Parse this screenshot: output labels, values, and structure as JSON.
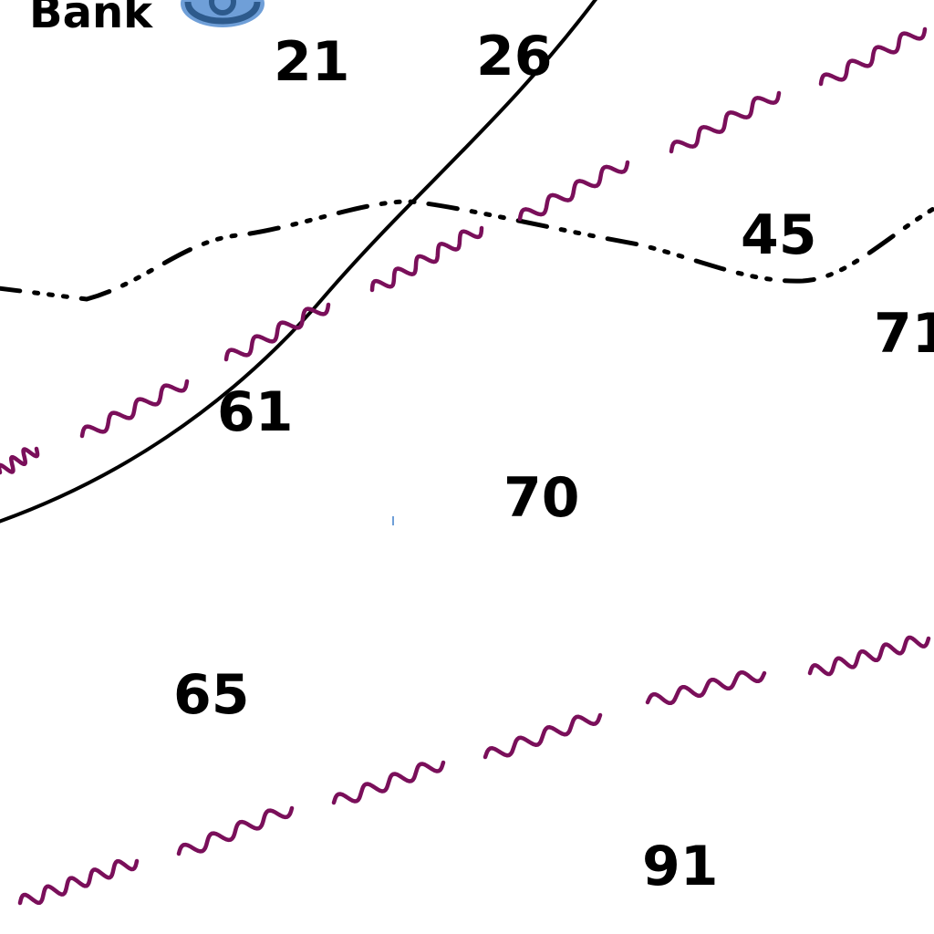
{
  "map": {
    "place_label": "Bank",
    "soundings": [
      "21",
      "26",
      "45",
      "71",
      "61",
      "70",
      "65",
      "91"
    ]
  },
  "colors": {
    "background": "#ffffff",
    "ink": "#000000",
    "submarine_cable": "#7a0f5a",
    "buoy_fill": "#6f9fd8",
    "buoy_ring": "#2d5a8c"
  },
  "symbols": {
    "buoy": "buoy-icon",
    "cable": "submarine-cable-symbol"
  }
}
